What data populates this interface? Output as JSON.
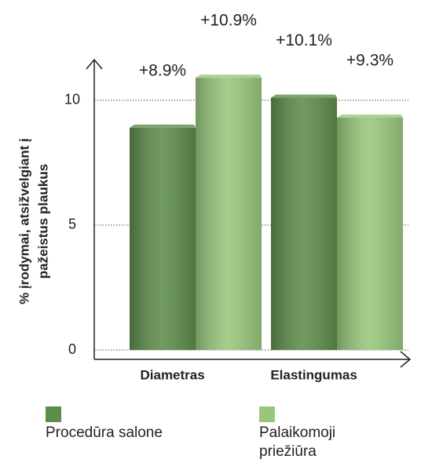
{
  "chart_data": {
    "type": "bar",
    "ylabel": [
      "% įrodymai, atsižvelgiant į",
      "pažeistus plaukus"
    ],
    "categories": [
      "Diametras",
      "Elastingumas"
    ],
    "series": [
      {
        "name": "Procedūra salone",
        "color": "#5e8c4b",
        "values": [
          8.9,
          10.1
        ],
        "value_labels": [
          "+8.9%",
          "+10.1%"
        ]
      },
      {
        "name": "Palaikomoji priežiūra",
        "color": "#98c77c",
        "values": [
          10.9,
          9.3
        ],
        "value_labels": [
          "+10.9%",
          "+9.3%"
        ]
      }
    ],
    "ylim": [
      0,
      11.5
    ],
    "yticks": [
      0,
      5,
      10
    ],
    "grid": true,
    "legend": "bottom"
  }
}
